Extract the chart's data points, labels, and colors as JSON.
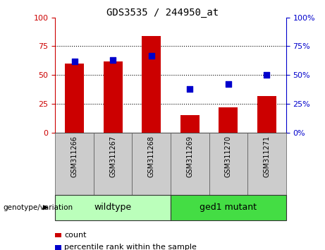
{
  "title": "GDS3535 / 244950_at",
  "samples": [
    "GSM311266",
    "GSM311267",
    "GSM311268",
    "GSM311269",
    "GSM311270",
    "GSM311271"
  ],
  "counts": [
    60,
    62,
    84,
    15,
    22,
    32
  ],
  "percentile_ranks": [
    62,
    63,
    67,
    38,
    42,
    50
  ],
  "ylim_left": [
    0,
    100
  ],
  "ylim_right": [
    0,
    100
  ],
  "yticks": [
    0,
    25,
    50,
    75,
    100
  ],
  "bar_color": "#cc0000",
  "dot_color": "#0000cc",
  "group1_label": "wildtype",
  "group2_label": "ged1 mutant",
  "group1_color": "#bbffbb",
  "group2_color": "#44dd44",
  "group_label_prefix": "genotype/variation",
  "legend_count_label": "count",
  "legend_percentile_label": "percentile rank within the sample",
  "grid_yticks": [
    25,
    50,
    75
  ],
  "bar_width": 0.5,
  "dot_size": 30,
  "label_bg_color": "#cccccc",
  "title_fontsize": 10,
  "tick_fontsize": 8,
  "label_fontsize": 7,
  "group_fontsize": 9,
  "legend_fontsize": 8
}
